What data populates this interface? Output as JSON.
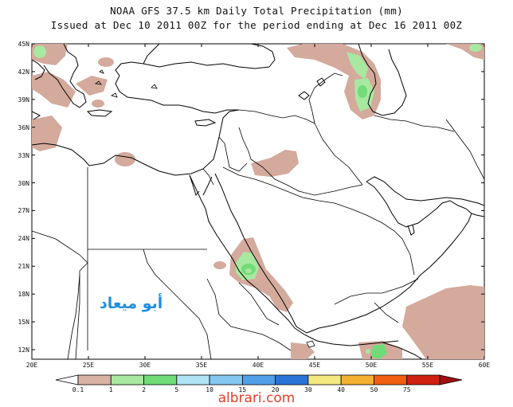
{
  "title_line1": "NOAA GFS 37.5 km Daily Total Precipitation (mm)",
  "title_line2": "Issued at Dec 10 2011 00Z for the period ending at Dec 16 2011 00Z",
  "lat_labels": [
    "45N",
    "42N",
    "39N",
    "36N",
    "33N",
    "30N",
    "27N",
    "24N",
    "21N",
    "18N",
    "15N",
    "12N"
  ],
  "lon_labels": [
    "20E",
    "25E",
    "30E",
    "35E",
    "40E",
    "45E",
    "50E",
    "55E",
    "60E"
  ],
  "overlay_text": "أبو ميعاد",
  "colorbar": {
    "labels": [
      "0.1",
      "1",
      "2",
      "5",
      "10",
      "15",
      "20",
      "30",
      "40",
      "50",
      "75"
    ],
    "colors": [
      "#ffffff",
      "#d9b2a6",
      "#a8e8a0",
      "#70dc78",
      "#b0e4f4",
      "#84c8f0",
      "#50a0e8",
      "#2a74d8",
      "#f4e880",
      "#f4b030",
      "#f06010",
      "#d02010",
      "#a01010"
    ]
  },
  "colors": {
    "land_brown": "#d4aa9c",
    "light_green": "#a8e8a0",
    "green": "#70dc78",
    "border": "#000000"
  },
  "watermark": "albrari.com"
}
